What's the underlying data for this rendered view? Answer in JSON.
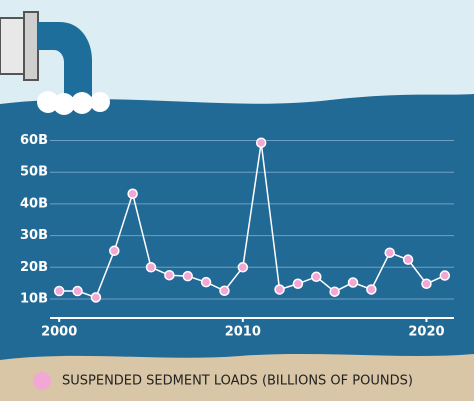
{
  "chart_data": {
    "type": "line",
    "x": [
      2000,
      2001,
      2002,
      2003,
      2004,
      2005,
      2006,
      2007,
      2008,
      2009,
      2010,
      2011,
      2012,
      2013,
      2014,
      2015,
      2016,
      2017,
      2018,
      2019,
      2020,
      2021
    ],
    "series": [
      {
        "name": "SUSPENDED SEDMENT LOADS (BILLIONS OF POUNDS)",
        "color": "#f2a7d4",
        "values": [
          12.5,
          12.5,
          10.5,
          25.2,
          43.2,
          20,
          17.5,
          17.2,
          15.3,
          12.6,
          20,
          59.3,
          13,
          14.8,
          17,
          12.3,
          15.2,
          13,
          24.6,
          22.4,
          14.8,
          17.4
        ]
      }
    ],
    "xlim": [
      1999.5,
      2021.5
    ],
    "xticks": [
      2000,
      2010,
      2020
    ],
    "ylim": [
      4,
      63
    ],
    "yticks": [
      {
        "value": 10,
        "label": "10B"
      },
      {
        "value": 20,
        "label": "20B"
      },
      {
        "value": 30,
        "label": "30B"
      },
      {
        "value": 40,
        "label": "40B"
      },
      {
        "value": 50,
        "label": "50B"
      },
      {
        "value": 60,
        "label": "60B"
      }
    ],
    "grid": true
  }
}
